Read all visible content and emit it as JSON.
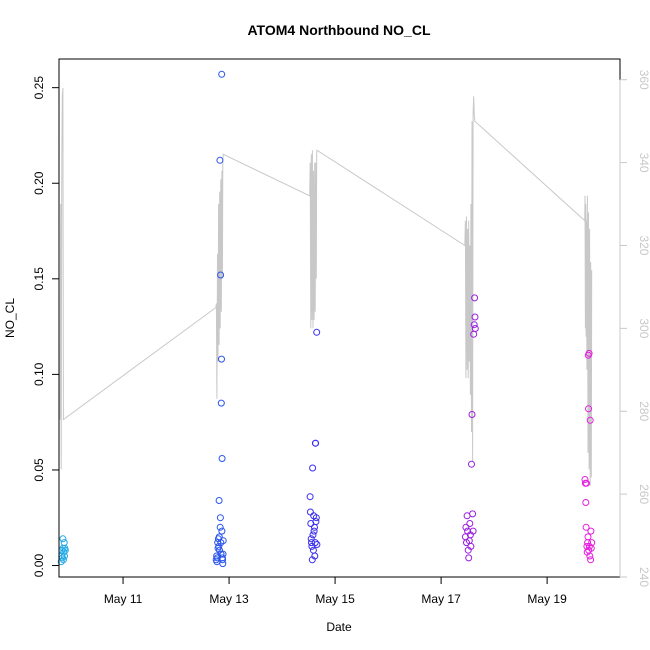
{
  "chart_data": {
    "type": "scatter",
    "title": "ATOM4 Northbound NO_CL",
    "xlabel": "Date",
    "ylabel": "NO_CL",
    "x_ticks": [
      {
        "date": "2016-05-11",
        "label": "May 11"
      },
      {
        "date": "2016-05-13",
        "label": "May 13"
      },
      {
        "date": "2016-05-15",
        "label": "May 15"
      },
      {
        "date": "2016-05-17",
        "label": "May 17"
      },
      {
        "date": "2016-05-19",
        "label": "May 19"
      }
    ],
    "xlim": [
      "2016-05-09T19:00",
      "2016-05-20T09:00"
    ],
    "ylim": [
      -0.006,
      0.265
    ],
    "y_ticks": [
      0.0,
      0.05,
      0.1,
      0.15,
      0.2,
      0.25
    ],
    "y_tick_labels": [
      "0.00",
      "0.05",
      "0.10",
      "0.15",
      "0.20",
      "0.25"
    ],
    "y2lim": [
      240,
      365
    ],
    "y2_ticks": [
      240,
      260,
      280,
      300,
      320,
      340,
      360
    ],
    "y2_tick_labels": [
      "240",
      "260",
      "280",
      "300",
      "320",
      "340",
      "360"
    ],
    "grid": false,
    "series": [
      {
        "color": "#1fa8e6",
        "points": [
          [
            "2016-05-09T20:00",
            0.002
          ],
          [
            "2016-05-09T20:15",
            0.005
          ],
          [
            "2016-05-09T20:20",
            0.008
          ],
          [
            "2016-05-09T20:35",
            0.004
          ],
          [
            "2016-05-09T20:45",
            0.014
          ],
          [
            "2016-05-09T20:50",
            0.009
          ],
          [
            "2016-05-09T21:00",
            0.003
          ],
          [
            "2016-05-09T21:10",
            0.007
          ],
          [
            "2016-05-09T21:20",
            0.012
          ],
          [
            "2016-05-09T21:30",
            0.005
          ],
          [
            "2016-05-09T21:40",
            0.009
          ],
          [
            "2016-05-09T21:50",
            0.008
          ]
        ]
      },
      {
        "color": "#2a55ee",
        "points": [
          [
            "2016-05-12T18:10",
            0.003
          ],
          [
            "2016-05-12T18:20",
            0.005
          ],
          [
            "2016-05-12T18:30",
            0.002
          ],
          [
            "2016-05-12T18:40",
            0.004
          ],
          [
            "2016-05-12T18:50",
            0.012
          ],
          [
            "2016-05-12T19:00",
            0.009
          ],
          [
            "2016-05-12T19:10",
            0.014
          ],
          [
            "2016-05-12T19:20",
            0.01
          ],
          [
            "2016-05-12T19:30",
            0.034
          ],
          [
            "2016-05-12T19:35",
            0.015
          ],
          [
            "2016-05-12T19:40",
            0.008
          ],
          [
            "2016-05-12T19:50",
            0.212
          ],
          [
            "2016-05-12T20:00",
            0.02
          ],
          [
            "2016-05-12T20:05",
            0.025
          ],
          [
            "2016-05-12T20:10",
            0.152
          ],
          [
            "2016-05-12T20:15",
            0.012
          ],
          [
            "2016-05-12T20:20",
            0.006
          ],
          [
            "2016-05-12T20:30",
            0.085
          ],
          [
            "2016-05-12T20:35",
            0.108
          ],
          [
            "2016-05-12T20:40",
            0.257
          ],
          [
            "2016-05-12T20:45",
            0.018
          ],
          [
            "2016-05-12T20:50",
            0.056
          ],
          [
            "2016-05-12T21:00",
            0.004
          ],
          [
            "2016-05-12T21:05",
            0.003
          ],
          [
            "2016-05-12T21:10",
            0.001
          ],
          [
            "2016-05-12T21:15",
            0.006
          ],
          [
            "2016-05-12T21:20",
            0.013
          ]
        ]
      },
      {
        "color": "#3a2df0",
        "points": [
          [
            "2016-05-14T12:40",
            0.036
          ],
          [
            "2016-05-14T12:50",
            0.028
          ],
          [
            "2016-05-14T13:00",
            0.022
          ],
          [
            "2016-05-14T13:10",
            0.014
          ],
          [
            "2016-05-14T13:20",
            0.012
          ],
          [
            "2016-05-14T13:30",
            0.01
          ],
          [
            "2016-05-14T13:40",
            0.003
          ],
          [
            "2016-05-14T13:50",
            0.051
          ],
          [
            "2016-05-14T14:00",
            0.016
          ],
          [
            "2016-05-14T14:10",
            0.008
          ],
          [
            "2016-05-14T14:20",
            0.026
          ],
          [
            "2016-05-14T14:30",
            0.018
          ],
          [
            "2016-05-14T14:40",
            0.02
          ],
          [
            "2016-05-14T14:50",
            0.005
          ],
          [
            "2016-05-14T15:00",
            0.012
          ],
          [
            "2016-05-14T15:05",
            0.064
          ],
          [
            "2016-05-14T15:10",
            0.064
          ],
          [
            "2016-05-14T15:20",
            0.023
          ],
          [
            "2016-05-14T15:30",
            0.025
          ],
          [
            "2016-05-14T15:40",
            0.122
          ],
          [
            "2016-05-14T15:45",
            0.011
          ]
        ]
      },
      {
        "color": "#9a1ee0",
        "points": [
          [
            "2016-05-17T11:00",
            0.015
          ],
          [
            "2016-05-17T11:15",
            0.02
          ],
          [
            "2016-05-17T11:30",
            0.012
          ],
          [
            "2016-05-17T11:45",
            0.026
          ],
          [
            "2016-05-17T12:00",
            0.018
          ],
          [
            "2016-05-17T12:15",
            0.008
          ],
          [
            "2016-05-17T12:30",
            0.004
          ],
          [
            "2016-05-17T12:45",
            0.013
          ],
          [
            "2016-05-17T13:00",
            0.022
          ],
          [
            "2016-05-17T13:15",
            0.016
          ],
          [
            "2016-05-17T13:30",
            0.01
          ],
          [
            "2016-05-17T13:45",
            0.053
          ],
          [
            "2016-05-17T14:00",
            0.079
          ],
          [
            "2016-05-17T14:15",
            0.027
          ],
          [
            "2016-05-17T14:30",
            0.018
          ],
          [
            "2016-05-17T14:45",
            0.121
          ],
          [
            "2016-05-17T15:00",
            0.126
          ],
          [
            "2016-05-17T15:10",
            0.14
          ],
          [
            "2016-05-17T15:20",
            0.13
          ],
          [
            "2016-05-17T15:30",
            0.124
          ]
        ]
      },
      {
        "color": "#e61ee0",
        "points": [
          [
            "2016-05-19T17:10",
            0.045
          ],
          [
            "2016-05-19T17:20",
            0.043
          ],
          [
            "2016-05-19T17:30",
            0.033
          ],
          [
            "2016-05-19T17:40",
            0.02
          ],
          [
            "2016-05-19T17:50",
            0.043
          ],
          [
            "2016-05-19T18:00",
            0.01
          ],
          [
            "2016-05-19T18:10",
            0.007
          ],
          [
            "2016-05-19T18:20",
            0.012
          ],
          [
            "2016-05-19T18:30",
            0.015
          ],
          [
            "2016-05-19T18:40",
            0.11
          ],
          [
            "2016-05-19T18:45",
            0.082
          ],
          [
            "2016-05-19T18:50",
            0.008
          ],
          [
            "2016-05-19T19:00",
            0.111
          ],
          [
            "2016-05-19T19:10",
            0.01
          ],
          [
            "2016-05-19T19:20",
            0.005
          ],
          [
            "2016-05-19T19:30",
            0.076
          ],
          [
            "2016-05-19T19:40",
            0.003
          ],
          [
            "2016-05-19T19:50",
            0.018
          ],
          [
            "2016-05-19T20:00",
            0.009
          ],
          [
            "2016-05-19T20:10",
            0.012
          ]
        ]
      }
    ],
    "secondary_line": {
      "color": "#c8c8c8",
      "axis": "right",
      "points": [
        [
          "2016-05-09T19:30",
          278
        ],
        [
          "2016-05-09T19:45",
          330
        ],
        [
          "2016-05-09T20:00",
          266
        ],
        [
          "2016-05-09T20:15",
          340
        ],
        [
          "2016-05-09T20:30",
          356
        ],
        [
          "2016-05-09T20:45",
          358
        ],
        [
          "2016-05-09T21:00",
          278
        ],
        [
          "2016-05-12T18:00",
          305
        ],
        [
          "2016-05-12T18:15",
          306
        ],
        [
          "2016-05-12T18:30",
          283
        ],
        [
          "2016-05-12T18:45",
          318
        ],
        [
          "2016-05-12T19:00",
          292
        ],
        [
          "2016-05-12T19:15",
          330
        ],
        [
          "2016-05-12T19:30",
          296
        ],
        [
          "2016-05-12T19:45",
          333
        ],
        [
          "2016-05-12T20:00",
          300
        ],
        [
          "2016-05-12T20:15",
          336
        ],
        [
          "2016-05-12T20:30",
          304
        ],
        [
          "2016-05-12T20:45",
          338
        ],
        [
          "2016-05-12T21:00",
          312
        ],
        [
          "2016-05-12T21:10",
          340
        ],
        [
          "2016-05-12T21:20",
          342
        ],
        [
          "2016-05-14T12:30",
          332
        ],
        [
          "2016-05-14T12:45",
          340
        ],
        [
          "2016-05-14T13:00",
          300
        ],
        [
          "2016-05-14T13:15",
          342
        ],
        [
          "2016-05-14T13:30",
          302
        ],
        [
          "2016-05-14T13:45",
          343
        ],
        [
          "2016-05-14T14:00",
          300
        ],
        [
          "2016-05-14T14:15",
          338
        ],
        [
          "2016-05-14T14:30",
          302
        ],
        [
          "2016-05-14T14:45",
          340
        ],
        [
          "2016-05-14T15:00",
          304
        ],
        [
          "2016-05-14T15:15",
          340
        ],
        [
          "2016-05-14T15:30",
          312
        ],
        [
          "2016-05-14T15:40",
          342
        ],
        [
          "2016-05-14T15:50",
          343
        ],
        [
          "2016-05-17T10:45",
          320
        ],
        [
          "2016-05-17T11:00",
          326
        ],
        [
          "2016-05-17T11:15",
          288
        ],
        [
          "2016-05-17T11:30",
          327
        ],
        [
          "2016-05-17T11:45",
          290
        ],
        [
          "2016-05-17T12:00",
          324
        ],
        [
          "2016-05-17T12:15",
          288
        ],
        [
          "2016-05-17T12:30",
          326
        ],
        [
          "2016-05-17T12:45",
          292
        ],
        [
          "2016-05-17T13:00",
          320
        ],
        [
          "2016-05-17T13:15",
          284
        ],
        [
          "2016-05-17T13:30",
          330
        ],
        [
          "2016-05-17T13:45",
          275
        ],
        [
          "2016-05-17T14:00",
          350
        ],
        [
          "2016-05-17T14:15",
          268
        ],
        [
          "2016-05-17T14:30",
          352
        ],
        [
          "2016-05-17T14:45",
          356
        ],
        [
          "2016-05-17T15:00",
          352
        ],
        [
          "2016-05-17T15:15",
          350
        ],
        [
          "2016-05-19T17:00",
          326
        ],
        [
          "2016-05-19T17:10",
          332
        ],
        [
          "2016-05-19T17:20",
          300
        ],
        [
          "2016-05-19T17:30",
          330
        ],
        [
          "2016-05-19T17:40",
          298
        ],
        [
          "2016-05-19T17:50",
          326
        ],
        [
          "2016-05-19T18:00",
          290
        ],
        [
          "2016-05-19T18:15",
          332
        ],
        [
          "2016-05-19T18:30",
          270
        ],
        [
          "2016-05-19T18:45",
          328
        ],
        [
          "2016-05-19T19:00",
          266
        ],
        [
          "2016-05-19T19:15",
          324
        ],
        [
          "2016-05-19T19:30",
          262
        ],
        [
          "2016-05-19T19:45",
          316
        ],
        [
          "2016-05-19T20:00",
          264
        ],
        [
          "2016-05-19T20:10",
          314
        ]
      ]
    }
  }
}
